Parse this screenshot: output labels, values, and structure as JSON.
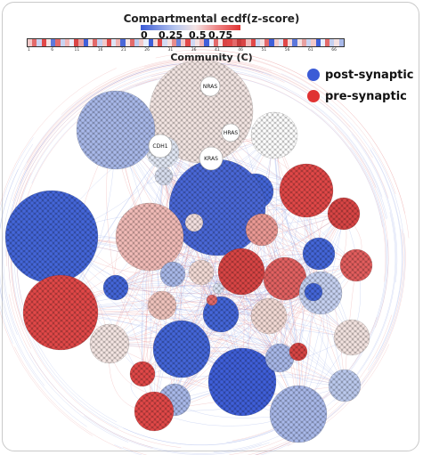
{
  "colorbar": {
    "title": "Compartmental ecdf(z-score)",
    "ticks": [
      "0",
      "0.25",
      "0.5",
      "0.75"
    ],
    "gradient_colors": [
      "#3b5bd6",
      "#b9c8ef",
      "#f4e4e4",
      "#ef8c8c",
      "#e03232"
    ]
  },
  "community_strip": {
    "label": "Community (C)",
    "tick_labels": [
      "1",
      "6",
      "11",
      "16",
      "21",
      "26",
      "31",
      "36",
      "41",
      "46",
      "51",
      "56",
      "61",
      "66"
    ],
    "colors": [
      "#f2c9c9",
      "#e36a6a",
      "#c9d3f2",
      "#e14848",
      "#f4e1e1",
      "#5d78db",
      "#e36a6a",
      "#c9d3f2",
      "#f2b7b7",
      "#e9eefb",
      "#d94545",
      "#e8a0a0",
      "#3f5fd9",
      "#f4e1e1",
      "#e36a6a",
      "#c5d0f0",
      "#f2c9c9",
      "#e14848",
      "#dde4f6",
      "#f0b4b4",
      "#4a68d8",
      "#f7e5e5",
      "#e36a6a",
      "#bccaee",
      "#f2c9c9",
      "#e8eefb",
      "#3f5fd9",
      "#f5d7d7",
      "#e14848",
      "#d2dbf3",
      "#f4e1e1",
      "#e68c8c",
      "#6883dd",
      "#f2c9c9",
      "#e14848",
      "#cfd8f3",
      "#f4e1e1",
      "#f0b4b4",
      "#3f5fd9",
      "#e9eefb",
      "#e36a6a",
      "#f7e5e5",
      "#d94545",
      "#e14848",
      "#e36a6a",
      "#c73b3b",
      "#d94545",
      "#f2b7b7",
      "#e14848",
      "#cbd5f2",
      "#f4e1e1",
      "#e36a6a",
      "#3f5fd9",
      "#f2c9c9",
      "#dde4f6",
      "#e14848",
      "#f5d7d7",
      "#5d78db",
      "#f4e1e1",
      "#e8a0a0",
      "#c9d3f2",
      "#f2c9c9",
      "#3f5fd9",
      "#e9eefb",
      "#e36a6a",
      "#c5d0f0",
      "#f4e1e1",
      "#a9b9ea"
    ]
  },
  "legend": [
    {
      "label": "post-synaptic",
      "color": "#3b5bd6"
    },
    {
      "label": "pre-synaptic",
      "color": "#e03232"
    }
  ],
  "hub_genes": [
    "NRAS",
    "HRAS",
    "CDH1",
    "KRAS"
  ],
  "network": {
    "edge_color_blue": "#8fa3e6",
    "edge_color_red": "#e78a8a",
    "communities": [
      {
        "color": "#f4e6e3"
      },
      {
        "color": "#e3e9f6"
      },
      {
        "color": "#ffffff"
      },
      {
        "color": "#a9b9ea"
      },
      {
        "color": "#4466d9"
      },
      {
        "color": "#4a68d8"
      },
      {
        "color": "#e14848"
      },
      {
        "color": "#d9dff0"
      },
      {
        "color": "#f2bcb8"
      },
      {
        "color": "#4466d9"
      },
      {
        "color": "#ec9a95"
      },
      {
        "color": "#d94545"
      },
      {
        "color": "#e35e5e"
      },
      {
        "color": "#4466d9"
      },
      {
        "color": "#a9b9ea"
      },
      {
        "color": "#f5dcd7"
      },
      {
        "color": "#d94545"
      },
      {
        "color": "#e36262"
      },
      {
        "color": "#c7d2f2"
      },
      {
        "color": "#dde4f4"
      },
      {
        "color": "#4466d9"
      },
      {
        "color": "#f0c4bd"
      },
      {
        "color": "#4466d9"
      },
      {
        "color": "#e14848"
      },
      {
        "color": "#f3dad5"
      },
      {
        "color": "#f5e6e3"
      },
      {
        "color": "#4466d9"
      },
      {
        "color": "#3f5fd9"
      },
      {
        "color": "#a9b9ea"
      },
      {
        "color": "#e14848"
      },
      {
        "color": "#a9b9ea"
      },
      {
        "color": "#bccaee"
      },
      {
        "color": "#e14848"
      },
      {
        "color": "#f3e3e0"
      },
      {
        "color": "#a9b9ea"
      },
      {
        "color": "#d94545"
      },
      {
        "color": "#f4e1e1"
      },
      {
        "color": "#4466d9"
      },
      {
        "color": "#e36a6a"
      }
    ]
  }
}
